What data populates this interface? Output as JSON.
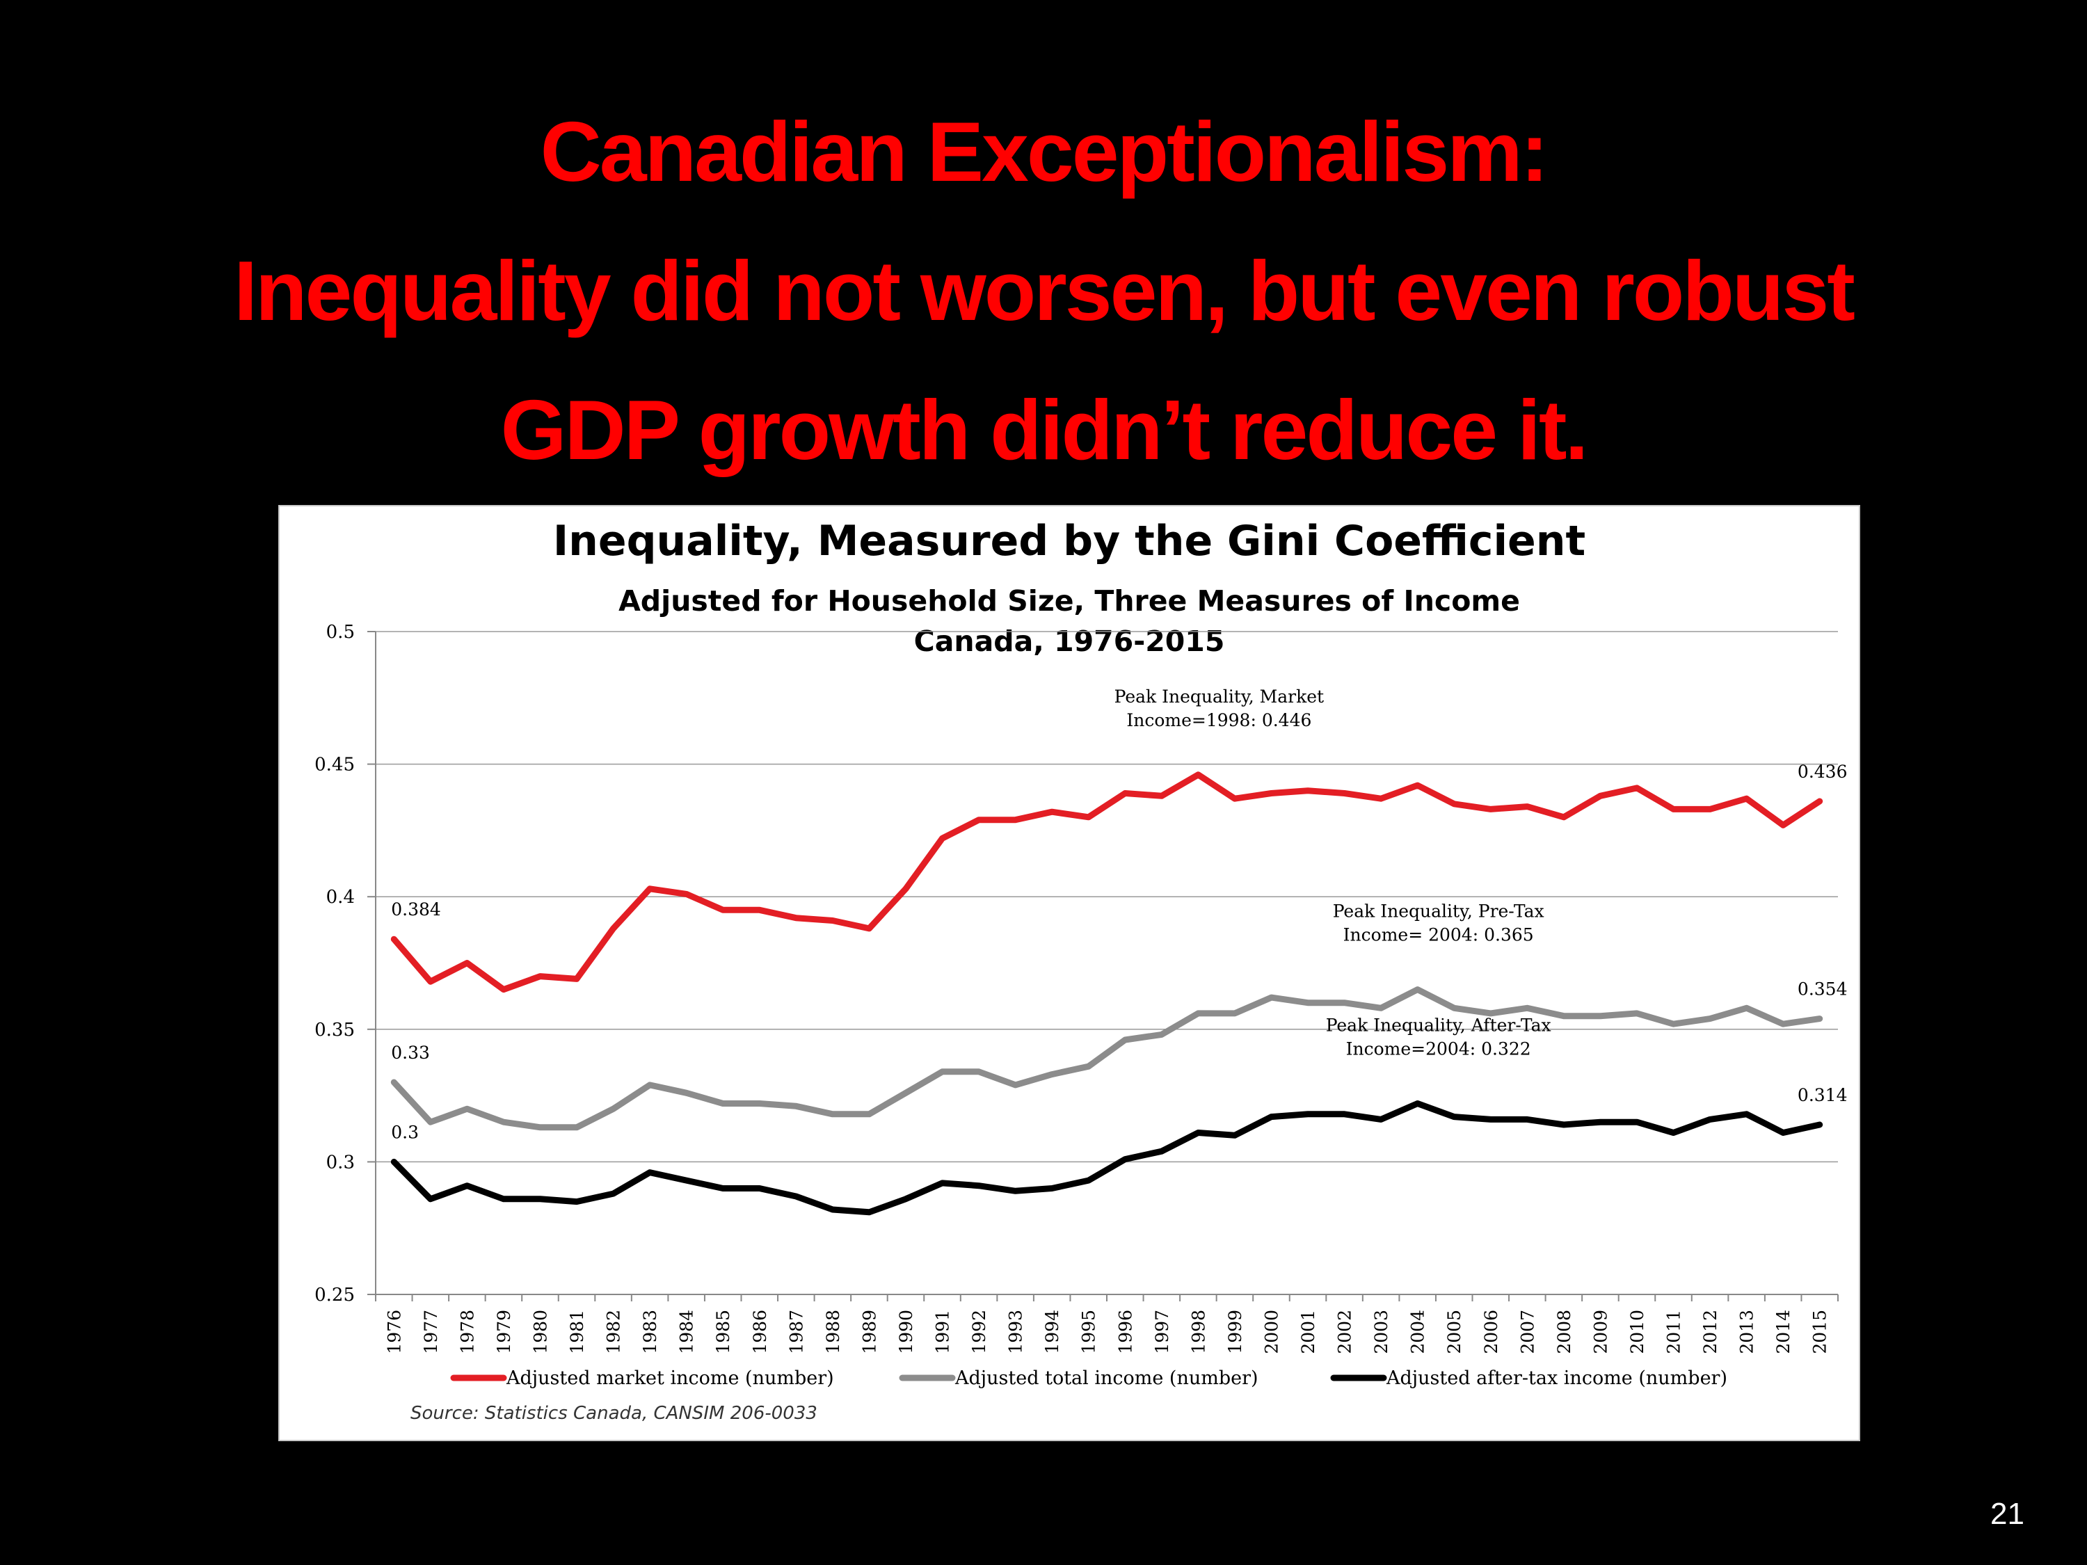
{
  "slide": {
    "title_lines": [
      "Canadian Exceptionalism:",
      "Inequality did not worsen, but even robust",
      "GDP growth didn’t reduce it."
    ],
    "page_number": "21"
  },
  "chart_data": {
    "type": "line",
    "title": "Inequality, Measured by the Gini Coefficient",
    "subtitle_lines": [
      "Adjusted for Household Size, Three Measures of Income",
      "Canada, 1976-2015"
    ],
    "x": [
      "1976",
      "1977",
      "1978",
      "1979",
      "1980",
      "1981",
      "1982",
      "1983",
      "1984",
      "1985",
      "1986",
      "1987",
      "1988",
      "1989",
      "1990",
      "1991",
      "1992",
      "1993",
      "1994",
      "1995",
      "1996",
      "1997",
      "1998",
      "1999",
      "2000",
      "2001",
      "2002",
      "2003",
      "2004",
      "2005",
      "2006",
      "2007",
      "2008",
      "2009",
      "2010",
      "2011",
      "2012",
      "2013",
      "2014",
      "2015"
    ],
    "ylim": [
      0.25,
      0.5
    ],
    "y_ticks": [
      "0.25",
      "0.3",
      "0.35",
      "0.4",
      "0.45",
      "0.5"
    ],
    "y_tick_values": [
      0.25,
      0.3,
      0.35,
      0.4,
      0.45,
      0.5
    ],
    "grid": true,
    "legend_position": "bottom",
    "series": [
      {
        "name": "Adjusted market income (number)",
        "color": "#e31e24",
        "values": [
          0.384,
          0.368,
          0.375,
          0.365,
          0.37,
          0.369,
          0.388,
          0.403,
          0.401,
          0.395,
          0.395,
          0.392,
          0.391,
          0.388,
          0.403,
          0.422,
          0.429,
          0.429,
          0.432,
          0.43,
          0.439,
          0.438,
          0.446,
          0.437,
          0.439,
          0.44,
          0.439,
          0.437,
          0.442,
          0.435,
          0.433,
          0.434,
          0.43,
          0.438,
          0.441,
          0.433,
          0.433,
          0.437,
          0.427,
          0.436
        ]
      },
      {
        "name": "Adjusted total income (number)",
        "color": "#8c8c8c",
        "values": [
          0.33,
          0.315,
          0.32,
          0.315,
          0.313,
          0.313,
          0.32,
          0.329,
          0.326,
          0.322,
          0.322,
          0.321,
          0.318,
          0.318,
          0.326,
          0.334,
          0.334,
          0.329,
          0.333,
          0.336,
          0.346,
          0.348,
          0.356,
          0.356,
          0.362,
          0.36,
          0.36,
          0.358,
          0.365,
          0.358,
          0.356,
          0.358,
          0.355,
          0.355,
          0.356,
          0.352,
          0.354,
          0.358,
          0.352,
          0.354
        ]
      },
      {
        "name": "Adjusted after-tax income (number)",
        "color": "#000000",
        "values": [
          0.3,
          0.286,
          0.291,
          0.286,
          0.286,
          0.285,
          0.288,
          0.296,
          0.293,
          0.29,
          0.29,
          0.287,
          0.282,
          0.281,
          0.286,
          0.292,
          0.291,
          0.289,
          0.29,
          0.293,
          0.301,
          0.304,
          0.311,
          0.31,
          0.317,
          0.318,
          0.318,
          0.316,
          0.322,
          0.317,
          0.316,
          0.316,
          0.314,
          0.315,
          0.315,
          0.311,
          0.316,
          0.318,
          0.311,
          0.314
        ]
      }
    ],
    "data_labels": [
      {
        "series": 0,
        "x": "1976",
        "text": "0.384"
      },
      {
        "series": 0,
        "x": "2015",
        "text": "0.436"
      },
      {
        "series": 1,
        "x": "1976",
        "text": "0.33"
      },
      {
        "series": 1,
        "x": "2015",
        "text": "0.354"
      },
      {
        "series": 2,
        "x": "1976",
        "text": "0.3"
      },
      {
        "series": 2,
        "x": "2015",
        "text": "0.314"
      }
    ],
    "annotations": [
      {
        "lines": [
          "Peak Inequality, Market",
          "Income=1998: 0.446"
        ],
        "x": "1998",
        "y": 0.446
      },
      {
        "lines": [
          "Peak Inequality, Pre-Tax",
          "Income= 2004: 0.365"
        ],
        "x": "2004",
        "y": 0.365
      },
      {
        "lines": [
          "Peak Inequality, After-Tax",
          "Income=2004: 0.322"
        ],
        "x": "2004",
        "y": 0.322
      }
    ],
    "source": "Source: Statistics Canada,  CANSIM 206-0033"
  }
}
